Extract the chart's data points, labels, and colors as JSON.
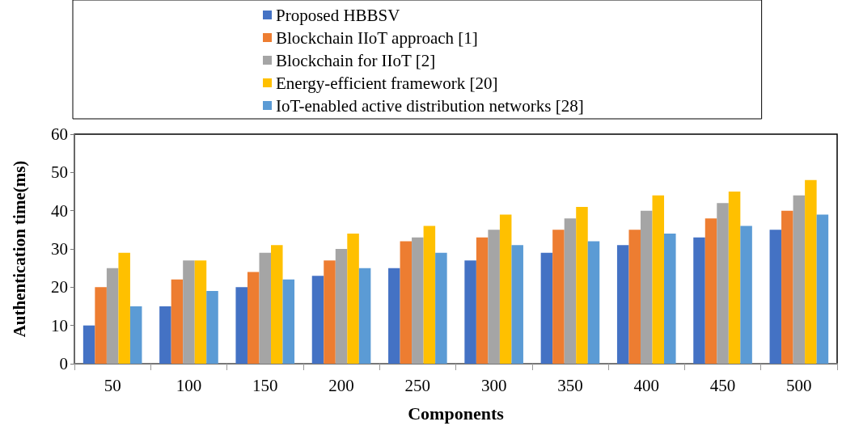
{
  "chart_data": {
    "type": "bar",
    "xlabel": "Components",
    "ylabel": "Authentication time(ms)",
    "categories": [
      "50",
      "100",
      "150",
      "200",
      "250",
      "300",
      "350",
      "400",
      "450",
      "500"
    ],
    "series": [
      {
        "name": "Proposed HBBSV",
        "color": "#4472c4",
        "values": [
          10,
          15,
          20,
          23,
          25,
          27,
          29,
          31,
          33,
          35
        ]
      },
      {
        "name": "Blockchain IIoT approach [1]",
        "color": "#ed7d31",
        "values": [
          20,
          22,
          24,
          27,
          32,
          33,
          35,
          35,
          38,
          40
        ]
      },
      {
        "name": "Blockchain for IIoT [2]",
        "color": "#a5a5a5",
        "values": [
          25,
          27,
          29,
          30,
          33,
          35,
          38,
          40,
          42,
          44
        ]
      },
      {
        "name": "Energy-efficient framework [20]",
        "color": "#ffc000",
        "values": [
          29,
          27,
          31,
          34,
          36,
          39,
          41,
          44,
          45,
          48
        ]
      },
      {
        "name": "IoT-enabled active distribution networks [28]",
        "color": "#5b9bd5",
        "values": [
          15,
          19,
          22,
          25,
          29,
          31,
          32,
          34,
          36,
          39
        ]
      }
    ],
    "ylim": [
      0,
      60
    ],
    "yticks": [
      0,
      10,
      20,
      30,
      40,
      50,
      60
    ],
    "grid": false,
    "legend": "top"
  }
}
